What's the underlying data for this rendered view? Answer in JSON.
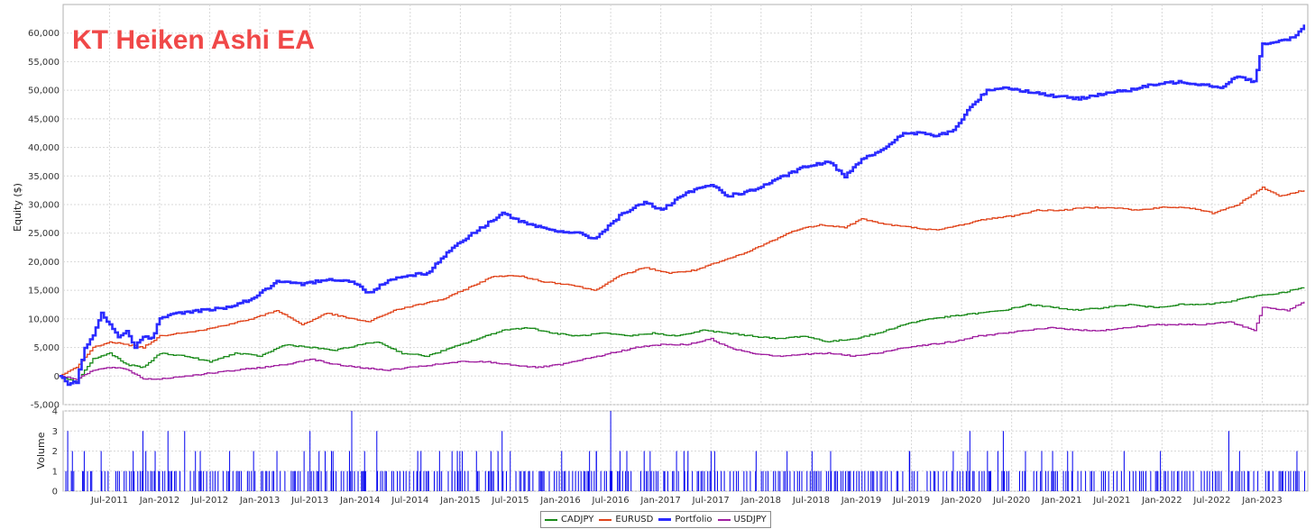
{
  "chart_data": [
    {
      "type": "line",
      "title": "KT Heiken Ashi EA",
      "ylabel": "Equity ($)",
      "xlabel": "",
      "ylim": [
        -5000,
        65000
      ],
      "yticks": [
        "-5,000",
        "0",
        "5,000",
        "10,000",
        "15,000",
        "20,000",
        "25,000",
        "30,000",
        "35,000",
        "40,000",
        "45,000",
        "50,000",
        "55,000",
        "60,000"
      ],
      "x_range": [
        "2011-01",
        "2023-06"
      ],
      "x_ticks": [
        "Jul-2011",
        "Jan-2012",
        "Jul-2012",
        "Jan-2013",
        "Jul-2013",
        "Jan-2014",
        "Jul-2014",
        "Jan-2015",
        "Jul-2015",
        "Jan-2016",
        "Jul-2016",
        "Jan-2017",
        "Jul-2017",
        "Jan-2018",
        "Jul-2018",
        "Jan-2019",
        "Jul-2019",
        "Jan-2020",
        "Jul-2020",
        "Jan-2021",
        "Jul-2021",
        "Jan-2022",
        "Jul-2022",
        "Jan-2023"
      ],
      "grid": true,
      "legend_position": "bottom-center",
      "series": [
        {
          "name": "Portfolio",
          "color": "#2b2bff",
          "points": [
            [
              "2011-01",
              0
            ],
            [
              "2011-02",
              -1500
            ],
            [
              "2011-03",
              -1000
            ],
            [
              "2011-04",
              5000
            ],
            [
              "2011-05",
              7000
            ],
            [
              "2011-06",
              11000
            ],
            [
              "2011-07",
              9000
            ],
            [
              "2011-08",
              7000
            ],
            [
              "2011-09",
              8000
            ],
            [
              "2011-10",
              5000
            ],
            [
              "2011-11",
              7000
            ],
            [
              "2011-12",
              6500
            ],
            [
              "2012-01",
              10000
            ],
            [
              "2012-03",
              11000
            ],
            [
              "2012-06",
              11500
            ],
            [
              "2012-09",
              12000
            ],
            [
              "2012-12",
              13500
            ],
            [
              "2013-03",
              16500
            ],
            [
              "2013-06",
              16000
            ],
            [
              "2013-09",
              17000
            ],
            [
              "2013-12",
              16500
            ],
            [
              "2014-02",
              14500
            ],
            [
              "2014-04",
              16500
            ],
            [
              "2014-06",
              17500
            ],
            [
              "2014-09",
              18000
            ],
            [
              "2014-12",
              22500
            ],
            [
              "2015-03",
              25500
            ],
            [
              "2015-06",
              28500
            ],
            [
              "2015-09",
              26500
            ],
            [
              "2015-12",
              25500
            ],
            [
              "2016-03",
              25000
            ],
            [
              "2016-05",
              24000
            ],
            [
              "2016-08",
              28000
            ],
            [
              "2016-11",
              30500
            ],
            [
              "2017-01",
              29000
            ],
            [
              "2017-04",
              32000
            ],
            [
              "2017-07",
              33500
            ],
            [
              "2017-09",
              31500
            ],
            [
              "2017-12",
              32500
            ],
            [
              "2018-03",
              34500
            ],
            [
              "2018-06",
              36500
            ],
            [
              "2018-09",
              37500
            ],
            [
              "2018-11",
              35000
            ],
            [
              "2019-01",
              38000
            ],
            [
              "2019-04",
              40000
            ],
            [
              "2019-06",
              42500
            ],
            [
              "2019-08",
              42500
            ],
            [
              "2019-10",
              42000
            ],
            [
              "2019-12",
              43000
            ],
            [
              "2020-02",
              47000
            ],
            [
              "2020-04",
              50000
            ],
            [
              "2020-06",
              50500
            ],
            [
              "2020-08",
              50000
            ],
            [
              "2020-10",
              49500
            ],
            [
              "2020-12",
              49000
            ],
            [
              "2021-03",
              48500
            ],
            [
              "2021-06",
              49500
            ],
            [
              "2021-09",
              50000
            ],
            [
              "2021-12",
              51000
            ],
            [
              "2022-03",
              51500
            ],
            [
              "2022-06",
              51000
            ],
            [
              "2022-08",
              50500
            ],
            [
              "2022-10",
              52500
            ],
            [
              "2022-12",
              51500
            ],
            [
              "2023-01",
              58000
            ],
            [
              "2023-03",
              58500
            ],
            [
              "2023-05",
              59500
            ],
            [
              "2023-06",
              61500
            ]
          ]
        },
        {
          "name": "EURUSD",
          "color": "#e0441b",
          "points": [
            [
              "2011-01",
              0
            ],
            [
              "2011-03",
              1500
            ],
            [
              "2011-05",
              5000
            ],
            [
              "2011-07",
              6000
            ],
            [
              "2011-09",
              5500
            ],
            [
              "2011-11",
              5000
            ],
            [
              "2012-01",
              7000
            ],
            [
              "2012-03",
              7500
            ],
            [
              "2012-06",
              8000
            ],
            [
              "2012-09",
              9000
            ],
            [
              "2012-12",
              10000
            ],
            [
              "2013-03",
              11500
            ],
            [
              "2013-06",
              9000
            ],
            [
              "2013-09",
              11000
            ],
            [
              "2013-12",
              10000
            ],
            [
              "2014-02",
              9500
            ],
            [
              "2014-05",
              11500
            ],
            [
              "2014-08",
              12500
            ],
            [
              "2014-11",
              13500
            ],
            [
              "2015-02",
              15500
            ],
            [
              "2015-05",
              17500
            ],
            [
              "2015-08",
              17500
            ],
            [
              "2015-11",
              16500
            ],
            [
              "2016-02",
              16000
            ],
            [
              "2016-05",
              15000
            ],
            [
              "2016-08",
              17500
            ],
            [
              "2016-11",
              19000
            ],
            [
              "2017-02",
              18000
            ],
            [
              "2017-05",
              18500
            ],
            [
              "2017-08",
              20000
            ],
            [
              "2017-11",
              21500
            ],
            [
              "2018-02",
              23500
            ],
            [
              "2018-05",
              25500
            ],
            [
              "2018-08",
              26500
            ],
            [
              "2018-11",
              26000
            ],
            [
              "2019-01",
              27500
            ],
            [
              "2019-04",
              26500
            ],
            [
              "2019-07",
              26000
            ],
            [
              "2019-10",
              25500
            ],
            [
              "2020-01",
              26500
            ],
            [
              "2020-04",
              27500
            ],
            [
              "2020-07",
              28000
            ],
            [
              "2020-10",
              29000
            ],
            [
              "2021-01",
              29000
            ],
            [
              "2021-04",
              29500
            ],
            [
              "2021-07",
              29500
            ],
            [
              "2021-10",
              29000
            ],
            [
              "2022-01",
              29500
            ],
            [
              "2022-04",
              29500
            ],
            [
              "2022-07",
              28500
            ],
            [
              "2022-10",
              30000
            ],
            [
              "2023-01",
              33000
            ],
            [
              "2023-03",
              31500
            ],
            [
              "2023-06",
              32500
            ]
          ]
        },
        {
          "name": "CADJPY",
          "color": "#1a8a1a",
          "points": [
            [
              "2011-01",
              0
            ],
            [
              "2011-03",
              -1000
            ],
            [
              "2011-05",
              3000
            ],
            [
              "2011-07",
              4000
            ],
            [
              "2011-09",
              2000
            ],
            [
              "2011-11",
              1500
            ],
            [
              "2012-01",
              4000
            ],
            [
              "2012-04",
              3500
            ],
            [
              "2012-07",
              2500
            ],
            [
              "2012-10",
              4000
            ],
            [
              "2013-01",
              3500
            ],
            [
              "2013-04",
              5500
            ],
            [
              "2013-07",
              5000
            ],
            [
              "2013-10",
              4500
            ],
            [
              "2014-01",
              5500
            ],
            [
              "2014-03",
              6000
            ],
            [
              "2014-06",
              4000
            ],
            [
              "2014-09",
              3500
            ],
            [
              "2014-12",
              5000
            ],
            [
              "2015-03",
              6500
            ],
            [
              "2015-06",
              8000
            ],
            [
              "2015-09",
              8500
            ],
            [
              "2015-12",
              7500
            ],
            [
              "2016-03",
              7000
            ],
            [
              "2016-06",
              7500
            ],
            [
              "2016-09",
              7000
            ],
            [
              "2016-12",
              7500
            ],
            [
              "2017-03",
              7000
            ],
            [
              "2017-06",
              8000
            ],
            [
              "2017-09",
              7500
            ],
            [
              "2017-12",
              7000
            ],
            [
              "2018-03",
              6500
            ],
            [
              "2018-06",
              7000
            ],
            [
              "2018-09",
              6000
            ],
            [
              "2018-12",
              6500
            ],
            [
              "2019-03",
              7500
            ],
            [
              "2019-06",
              9000
            ],
            [
              "2019-09",
              10000
            ],
            [
              "2019-12",
              10500
            ],
            [
              "2020-03",
              11000
            ],
            [
              "2020-06",
              11500
            ],
            [
              "2020-09",
              12500
            ],
            [
              "2020-12",
              12000
            ],
            [
              "2021-03",
              11500
            ],
            [
              "2021-06",
              12000
            ],
            [
              "2021-09",
              12500
            ],
            [
              "2021-12",
              12000
            ],
            [
              "2022-03",
              12500
            ],
            [
              "2022-06",
              12500
            ],
            [
              "2022-09",
              13000
            ],
            [
              "2022-12",
              14000
            ],
            [
              "2023-03",
              14500
            ],
            [
              "2023-06",
              15500
            ]
          ]
        },
        {
          "name": "USDJPY",
          "color": "#a020a0",
          "points": [
            [
              "2011-01",
              0
            ],
            [
              "2011-03",
              -500
            ],
            [
              "2011-05",
              1000
            ],
            [
              "2011-07",
              1500
            ],
            [
              "2011-09",
              1200
            ],
            [
              "2011-11",
              -500
            ],
            [
              "2012-01",
              -500
            ],
            [
              "2012-04",
              0
            ],
            [
              "2012-07",
              500
            ],
            [
              "2012-10",
              1000
            ],
            [
              "2013-01",
              1500
            ],
            [
              "2013-04",
              2000
            ],
            [
              "2013-07",
              3000
            ],
            [
              "2013-10",
              2000
            ],
            [
              "2014-01",
              1500
            ],
            [
              "2014-04",
              1000
            ],
            [
              "2014-07",
              1500
            ],
            [
              "2014-10",
              2000
            ],
            [
              "2015-01",
              2500
            ],
            [
              "2015-04",
              2500
            ],
            [
              "2015-07",
              2000
            ],
            [
              "2015-10",
              1500
            ],
            [
              "2016-01",
              2000
            ],
            [
              "2016-04",
              3000
            ],
            [
              "2016-07",
              4000
            ],
            [
              "2016-10",
              5000
            ],
            [
              "2017-01",
              5500
            ],
            [
              "2017-04",
              5500
            ],
            [
              "2017-07",
              6500
            ],
            [
              "2017-09",
              5000
            ],
            [
              "2017-12",
              4000
            ],
            [
              "2018-03",
              3500
            ],
            [
              "2018-06",
              3800
            ],
            [
              "2018-09",
              4000
            ],
            [
              "2018-12",
              3500
            ],
            [
              "2019-03",
              4000
            ],
            [
              "2019-06",
              5000
            ],
            [
              "2019-09",
              5500
            ],
            [
              "2019-12",
              6000
            ],
            [
              "2020-03",
              7000
            ],
            [
              "2020-06",
              7500
            ],
            [
              "2020-09",
              8000
            ],
            [
              "2020-12",
              8500
            ],
            [
              "2021-03",
              8000
            ],
            [
              "2021-06",
              8000
            ],
            [
              "2021-09",
              8500
            ],
            [
              "2021-12",
              9000
            ],
            [
              "2022-03",
              9000
            ],
            [
              "2022-06",
              9000
            ],
            [
              "2022-09",
              9500
            ],
            [
              "2022-12",
              8000
            ],
            [
              "2023-01",
              12000
            ],
            [
              "2023-04",
              11500
            ],
            [
              "2023-06",
              13000
            ]
          ]
        }
      ]
    },
    {
      "type": "bar",
      "ylabel": "Volume",
      "ylim": [
        0,
        4
      ],
      "yticks": [
        "0",
        "1",
        "2",
        "3",
        "4"
      ],
      "color": "#0000ee",
      "x_range": [
        "2011-01",
        "2023-06"
      ],
      "description_values": {
        "typical": 1,
        "peaks": [
          [
            "2011-02",
            3
          ],
          [
            "2011-06",
            2
          ],
          [
            "2011-11",
            3
          ],
          [
            "2012-02",
            3
          ],
          [
            "2012-04",
            3
          ],
          [
            "2013-07",
            3
          ],
          [
            "2013-12",
            4
          ],
          [
            "2014-03",
            3
          ],
          [
            "2015-06",
            3
          ],
          [
            "2016-07",
            4
          ],
          [
            "2020-02",
            3
          ],
          [
            "2020-06",
            3
          ],
          [
            "2022-09",
            3
          ]
        ]
      }
    }
  ],
  "legend": {
    "items": [
      {
        "label": "CADJPY",
        "color": "#1a8a1a"
      },
      {
        "label": "EURUSD",
        "color": "#e0441b"
      },
      {
        "label": "Portfolio",
        "color": "#2b2bff"
      },
      {
        "label": "USDJPY",
        "color": "#a020a0"
      }
    ]
  }
}
